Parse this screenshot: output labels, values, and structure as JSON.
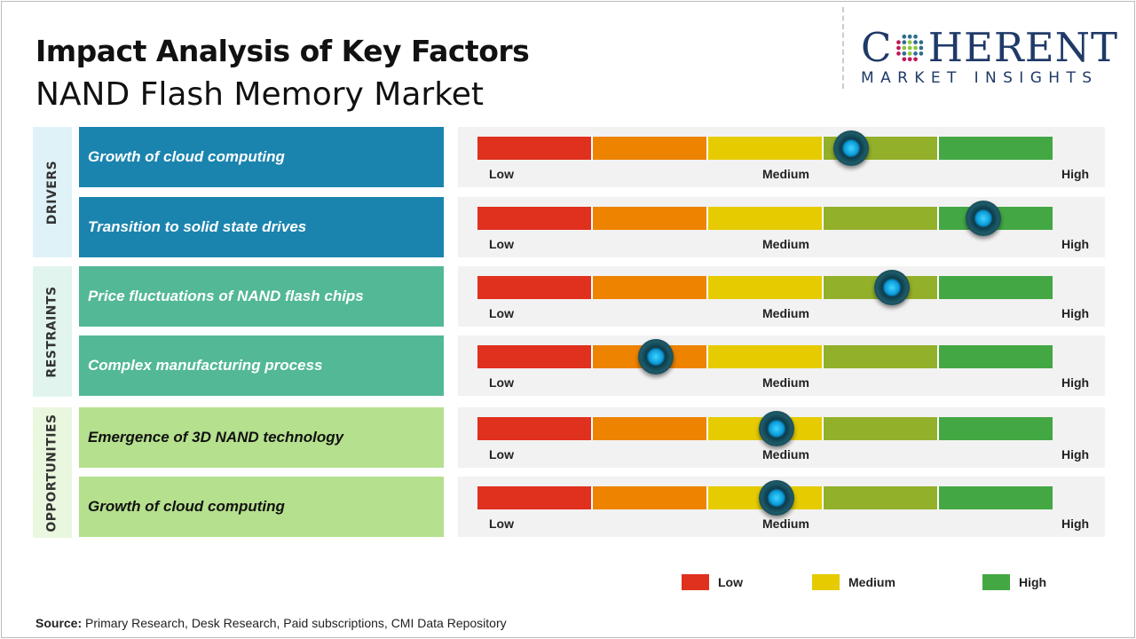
{
  "title": "Impact Analysis of Key Factors",
  "subtitle": "NAND Flash Memory Market",
  "logo": {
    "top": "COHERENT",
    "bottom": "MARKET INSIGHTS"
  },
  "colors": {
    "low": "#e0301e",
    "low_medium": "#ee8300",
    "medium": "#e5cb00",
    "medium_high": "#93b02a",
    "high": "#43a843",
    "drivers": "#1b84ae",
    "restraints": "#52b896",
    "opportunities": "#b5e08e"
  },
  "scale_labels": {
    "low": "Low",
    "medium": "Medium",
    "high": "High"
  },
  "categories": [
    {
      "name": "DRIVERS",
      "factors": [
        {
          "label": "Growth of cloud computing",
          "impact": 0.65
        },
        {
          "label": "Transition to solid state drives",
          "impact": 0.88
        }
      ]
    },
    {
      "name": "RESTRAINTS",
      "factors": [
        {
          "label": "Price fluctuations of NAND flash chips",
          "impact": 0.72
        },
        {
          "label": "Complex manufacturing process",
          "impact": 0.31
        }
      ]
    },
    {
      "name": "OPPORTUNITIES",
      "factors": [
        {
          "label": "Emergence of 3D NAND technology",
          "impact": 0.52
        },
        {
          "label": "Growth of cloud computing",
          "impact": 0.52
        }
      ]
    }
  ],
  "legend": [
    {
      "label": "Low",
      "color": "#e0301e"
    },
    {
      "label": "Medium",
      "color": "#e5cb00"
    },
    {
      "label": "High",
      "color": "#43a843"
    }
  ],
  "source": {
    "label": "Source:",
    "text": " Primary Research, Desk Research, Paid subscriptions, CMI Data Repository"
  }
}
